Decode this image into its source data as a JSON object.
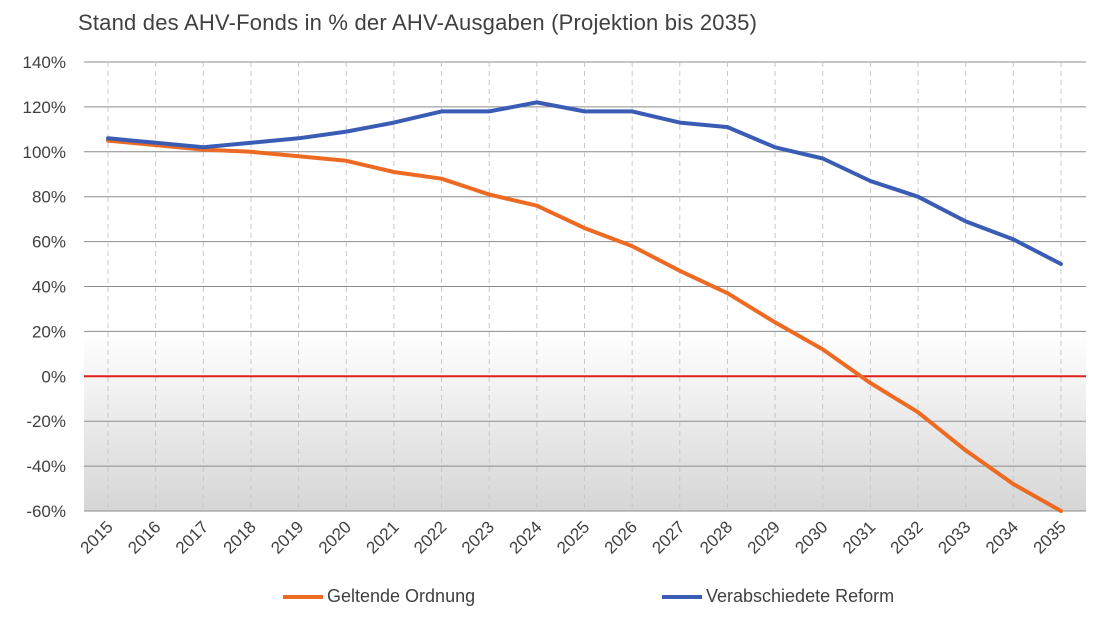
{
  "chart_data": {
    "type": "line",
    "title": "Stand des AHV-Fonds in % der AHV-Ausgaben (Projektion bis 2035)",
    "xlabel": "",
    "ylabel": "",
    "categories": [
      "2015",
      "2016",
      "2017",
      "2018",
      "2019",
      "2020",
      "2021",
      "2022",
      "2023",
      "2024",
      "2025",
      "2026",
      "2027",
      "2028",
      "2029",
      "2030",
      "2031",
      "2032",
      "2033",
      "2034",
      "2035"
    ],
    "ylim": [
      -60,
      140
    ],
    "yticks": [
      -60,
      -40,
      -20,
      0,
      20,
      40,
      60,
      80,
      100,
      120,
      140
    ],
    "ytick_labels": [
      "-60%",
      "-40%",
      "-20%",
      "0%",
      "20%",
      "40%",
      "60%",
      "80%",
      "100%",
      "120%",
      "140%"
    ],
    "grid": true,
    "legend_position": "bottom",
    "zero_line_color": "#e0201b",
    "series": [
      {
        "name": "Geltende Ordnung",
        "color": "#ed6a22",
        "values": [
          105,
          103,
          101,
          100,
          98,
          96,
          91,
          88,
          81,
          76,
          66,
          58,
          47,
          37,
          24,
          12,
          -3,
          -16,
          -33,
          -48,
          -61
        ]
      },
      {
        "name": "Verabschiedete Reform",
        "color": "#3a5cb4",
        "values": [
          106,
          104,
          102,
          104,
          106,
          109,
          113,
          118,
          118,
          122,
          118,
          118,
          113,
          111,
          102,
          97,
          87,
          80,
          69,
          61,
          50
        ]
      }
    ]
  }
}
